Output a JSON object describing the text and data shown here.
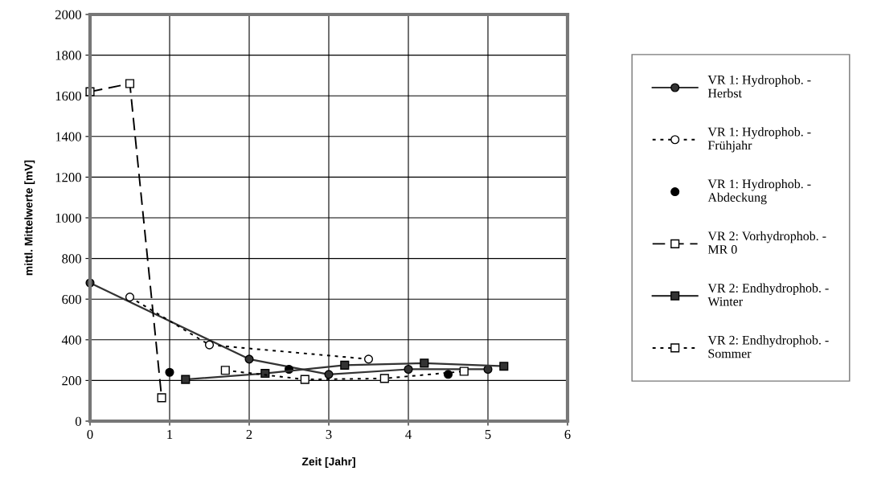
{
  "chart_data": {
    "type": "line",
    "xlabel": "Zeit [Jahr]",
    "ylabel": "mittl. Mittelwerte [mV]",
    "xlim": [
      0,
      6
    ],
    "xticks": [
      0,
      1,
      2,
      3,
      4,
      5,
      6
    ],
    "ylim": [
      0,
      2000
    ],
    "yticks": [
      0,
      200,
      400,
      600,
      800,
      1000,
      1200,
      1400,
      1600,
      1800,
      2000
    ],
    "grid": true,
    "legend": "right",
    "series": [
      {
        "name": "VR 1: Hydrophob. - Herbst",
        "color": "#333333",
        "marker": "circle",
        "line_style": "solid",
        "x": [
          0,
          2,
          3,
          4,
          5
        ],
        "values": [
          680,
          305,
          230,
          255,
          255
        ]
      },
      {
        "name": "VR 1: Hydrophob. - Frühjahr",
        "color": "#000000",
        "marker": "circle",
        "line_style": "dotted",
        "x": [
          0.5,
          1.5,
          3.5
        ],
        "values": [
          610,
          375,
          305
        ]
      },
      {
        "name": "VR 1: Hydrophob. - Abdeckung",
        "type": "scatter",
        "color": "#000000",
        "marker": "circle",
        "x": [
          1,
          2.5,
          4.5
        ],
        "values": [
          240,
          255,
          230
        ]
      },
      {
        "name": "VR 2: Vorhydrophob. - MR 0",
        "color": "#000000",
        "marker": "square",
        "line_style": "dashed",
        "x": [
          0,
          0.5,
          0.9
        ],
        "values": [
          1620,
          1660,
          115
        ]
      },
      {
        "name": "VR 2: Endhydrophob. - Winter",
        "color": "#333333",
        "marker": "square",
        "line_style": "solid",
        "x": [
          1.2,
          2.2,
          3.2,
          4.2,
          5.2
        ],
        "values": [
          205,
          235,
          275,
          285,
          270
        ]
      },
      {
        "name": "VR 2: Endhydrophob. - Sommer",
        "color": "#000000",
        "marker": "square",
        "line_style": "dotted",
        "x": [
          1.7,
          2.7,
          3.7,
          4.7
        ],
        "values": [
          250,
          205,
          210,
          245
        ]
      }
    ]
  }
}
